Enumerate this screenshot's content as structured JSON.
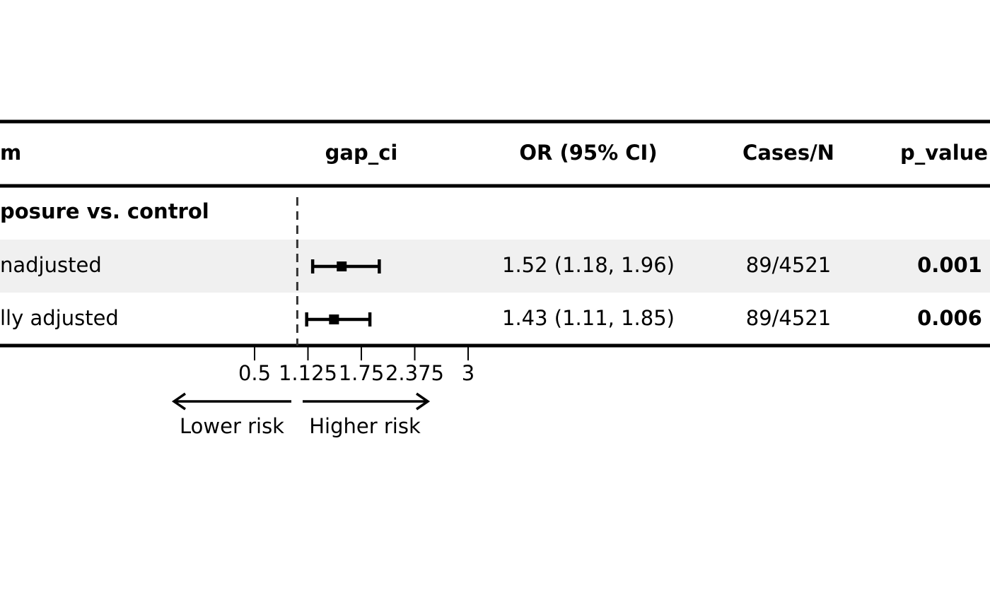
{
  "table": {
    "header": [
      "m",
      "gap_ci",
      "OR (95% CI)",
      "Cases/N",
      "p_value"
    ],
    "group": "posure vs. control",
    "rows": [
      [
        "nadjusted",
        "1.52 (1.18, 1.96)",
        "89/4521",
        "0.001"
      ],
      [
        "lly adjusted",
        "1.43 (1.11, 1.85)",
        "89/4521",
        "0.006"
      ]
    ]
  },
  "chart_data": {
    "type": "forest",
    "estimates": [
      1.52,
      1.43
    ],
    "lower": [
      1.18,
      1.11
    ],
    "upper": [
      1.96,
      1.85
    ],
    "ref_line": 1,
    "xlim": [
      0.5,
      3
    ],
    "xticks": [
      0.5,
      1.125,
      1.75,
      2.375,
      3
    ],
    "left_label": "Lower risk",
    "right_label": "Higher risk"
  }
}
